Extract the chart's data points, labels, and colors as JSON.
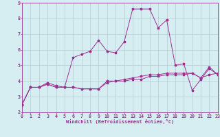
{
  "xlabel": "Windchill (Refroidissement éolien,°C)",
  "bg_color": "#d6eef2",
  "grid_color": "#b0cdd4",
  "line_color": "#9b3090",
  "xlim": [
    0,
    23
  ],
  "ylim": [
    2,
    9
  ],
  "xticks": [
    0,
    1,
    2,
    3,
    4,
    5,
    6,
    7,
    8,
    9,
    10,
    11,
    12,
    13,
    14,
    15,
    16,
    17,
    18,
    19,
    20,
    21,
    22,
    23
  ],
  "yticks": [
    2,
    3,
    4,
    5,
    6,
    7,
    8,
    9
  ],
  "series1_x": [
    0,
    1,
    2,
    3,
    4,
    5,
    6,
    7,
    8,
    9,
    10,
    11,
    12,
    13,
    14,
    15,
    16,
    17,
    18,
    19,
    20,
    21,
    22,
    23
  ],
  "series1_y": [
    2.5,
    3.6,
    3.6,
    3.8,
    3.6,
    3.6,
    3.6,
    3.5,
    3.5,
    3.5,
    4.0,
    4.0,
    4.1,
    4.2,
    4.3,
    4.4,
    4.4,
    4.5,
    4.5,
    4.5,
    4.5,
    4.2,
    4.4,
    4.5
  ],
  "series2_x": [
    0,
    1,
    2,
    3,
    4,
    5,
    6,
    7,
    8,
    9,
    10,
    11,
    12,
    13,
    14,
    15,
    16,
    17,
    18,
    19,
    20,
    21,
    22,
    23
  ],
  "series2_y": [
    2.5,
    3.6,
    3.6,
    3.9,
    3.7,
    3.6,
    5.5,
    5.7,
    5.9,
    6.6,
    5.9,
    5.8,
    6.5,
    8.6,
    8.6,
    8.6,
    7.4,
    7.9,
    5.0,
    5.1,
    3.4,
    4.1,
    4.8,
    4.4
  ],
  "series3_x": [
    0,
    1,
    2,
    3,
    4,
    5,
    6,
    7,
    8,
    9,
    10,
    11,
    12,
    13,
    14,
    15,
    16,
    17,
    18,
    19,
    20,
    21,
    22,
    23
  ],
  "series3_y": [
    2.5,
    3.6,
    3.6,
    3.8,
    3.6,
    3.6,
    3.6,
    3.5,
    3.5,
    3.5,
    3.9,
    4.0,
    4.0,
    4.1,
    4.1,
    4.3,
    4.3,
    4.4,
    4.4,
    4.4,
    4.5,
    4.2,
    4.9,
    4.4
  ],
  "xlabel_fontsize": 5.0,
  "tick_fontsize": 4.8
}
